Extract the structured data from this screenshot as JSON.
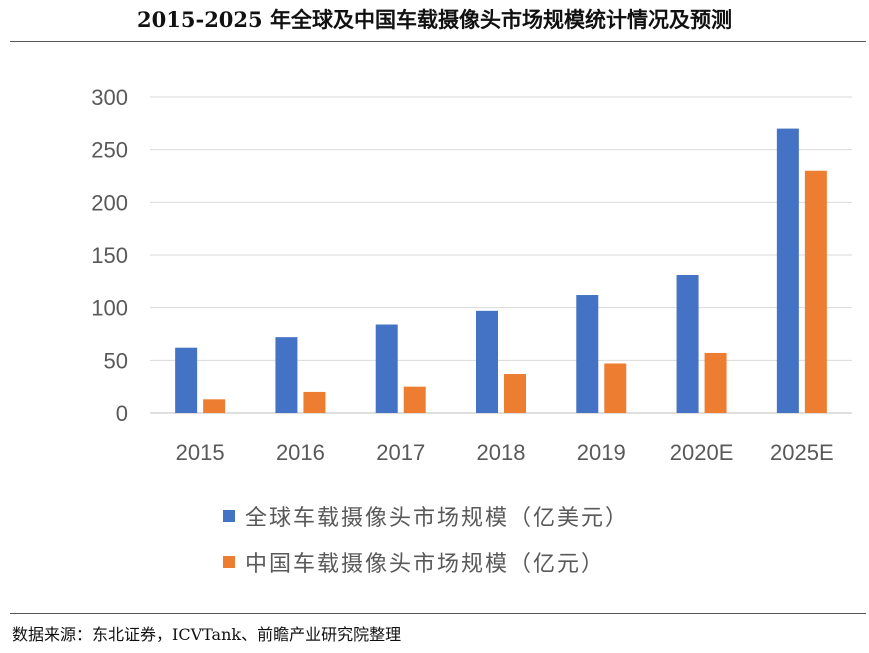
{
  "header": {
    "title": "2015-2025 年全球及中国车载摄像头市场规模统计情况及预测"
  },
  "footer": {
    "source": "数据来源：东北证券，ICVTank、前瞻产业研究院整理"
  },
  "chart_data": {
    "type": "bar",
    "title": "2015-2025 年全球及中国车载摄像头市场规模统计情况及预测",
    "categories": [
      "2015",
      "2016",
      "2017",
      "2018",
      "2019",
      "2020E",
      "2025E"
    ],
    "series": [
      {
        "name": "全球车载摄像头市场规模（亿美元）",
        "color": "#4472C4",
        "values": [
          62,
          72,
          84,
          97,
          112,
          131,
          270
        ]
      },
      {
        "name": "中国车载摄像头市场规模（亿元）",
        "color": "#ED7D31",
        "values": [
          13,
          20,
          25,
          37,
          47,
          57,
          230
        ]
      }
    ],
    "ylim": [
      0,
      300
    ],
    "yticks": [
      "0",
      "50",
      "100",
      "150",
      "200",
      "250",
      "300"
    ],
    "grid": true,
    "legend_position": "bottom",
    "xlabel": "",
    "ylabel": ""
  }
}
